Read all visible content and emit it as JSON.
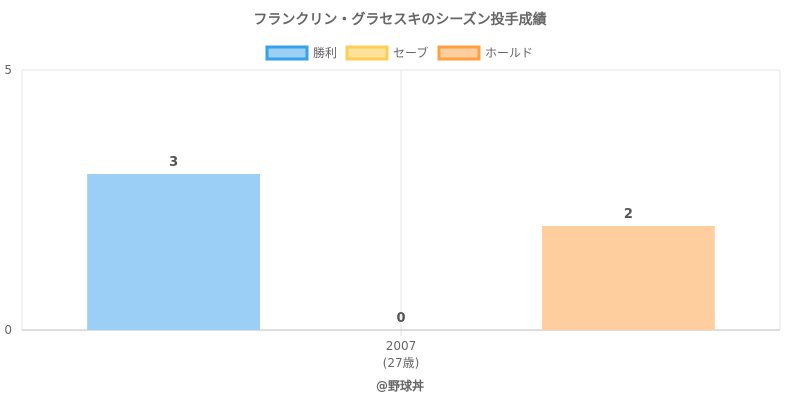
{
  "chart_data": {
    "type": "bar",
    "title": "フランクリン・グラセスキのシーズン投手成績",
    "categories": [
      "2007"
    ],
    "category_sublabels": [
      "(27歳)"
    ],
    "series": [
      {
        "name": "勝利",
        "values": [
          3
        ],
        "color": "#9ccff5",
        "border_color": "#36a2eb"
      },
      {
        "name": "セーブ",
        "values": [
          0
        ],
        "color": "#ffe29a",
        "border_color": "#ffcd56"
      },
      {
        "name": "ホールド",
        "values": [
          2
        ],
        "color": "#ffce9f",
        "border_color": "#ff9f40"
      }
    ],
    "y_ticks": [
      "0",
      "5"
    ],
    "ylim": [
      0,
      5
    ],
    "grid": true,
    "legend_position": "top"
  },
  "credit": "@野球丼"
}
